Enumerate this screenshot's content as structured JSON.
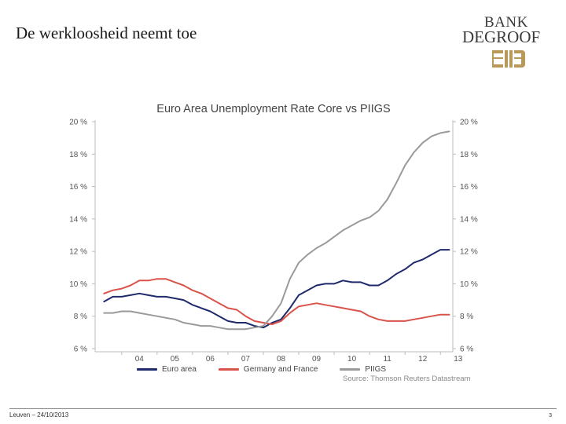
{
  "slide": {
    "title": "De werkloosheid neemt toe",
    "footer_left": "Leuven – 24/10/2013",
    "page_number": "3"
  },
  "logo": {
    "line1": "BANK",
    "line2": "DEGROOF"
  },
  "colors": {
    "euro": "#1f2a6b",
    "gerfra": "#d9534a",
    "piigs": "#9a9a9a",
    "logo_dark": "#3a3a3a",
    "logo_gold": "#b8995a"
  },
  "chart_data": {
    "type": "line",
    "title": "Euro Area Unemployment Rate Core vs PIIGS",
    "source": "Source: Thomson Reuters Datastream",
    "x_ticks": [
      "04",
      "05",
      "06",
      "07",
      "08",
      "09",
      "10",
      "11",
      "12",
      "13"
    ],
    "x_tick_values": [
      2004,
      2005,
      2006,
      2007,
      2008,
      2009,
      2010,
      2011,
      2012,
      2013
    ],
    "xlim": [
      2003.25,
      2013.35
    ],
    "ylim": [
      6,
      20
    ],
    "y_ticks": [
      "6 %",
      "8 %",
      "10 %",
      "12 %",
      "14 %",
      "16 %",
      "18 %",
      "20 %"
    ],
    "y_tick_values": [
      6,
      8,
      10,
      12,
      14,
      16,
      18,
      20
    ],
    "legend_position": "bottom",
    "grid": false,
    "series": [
      {
        "name": "Euro area",
        "color": "#1f2a6b",
        "x": [
          2003.5,
          2003.75,
          2004.0,
          2004.25,
          2004.5,
          2004.75,
          2005.0,
          2005.25,
          2005.5,
          2005.75,
          2006.0,
          2006.25,
          2006.5,
          2006.75,
          2007.0,
          2007.25,
          2007.5,
          2007.75,
          2008.0,
          2008.25,
          2008.5,
          2008.75,
          2009.0,
          2009.25,
          2009.5,
          2009.75,
          2010.0,
          2010.25,
          2010.5,
          2010.75,
          2011.0,
          2011.25,
          2011.5,
          2011.75,
          2012.0,
          2012.25,
          2012.5,
          2012.75,
          2013.0,
          2013.25
        ],
        "y": [
          8.9,
          9.2,
          9.2,
          9.3,
          9.4,
          9.3,
          9.2,
          9.2,
          9.1,
          9.0,
          8.7,
          8.5,
          8.3,
          8.0,
          7.7,
          7.6,
          7.6,
          7.4,
          7.3,
          7.6,
          7.8,
          8.5,
          9.3,
          9.6,
          9.9,
          10.0,
          10.0,
          10.2,
          10.1,
          10.1,
          9.9,
          9.9,
          10.2,
          10.6,
          10.9,
          11.3,
          11.5,
          11.8,
          12.1,
          12.1
        ]
      },
      {
        "name": "Germany and France",
        "color": "#d9534a",
        "x": [
          2003.5,
          2003.75,
          2004.0,
          2004.25,
          2004.5,
          2004.75,
          2005.0,
          2005.25,
          2005.5,
          2005.75,
          2006.0,
          2006.25,
          2006.5,
          2006.75,
          2007.0,
          2007.25,
          2007.5,
          2007.75,
          2008.0,
          2008.25,
          2008.5,
          2008.75,
          2009.0,
          2009.25,
          2009.5,
          2009.75,
          2010.0,
          2010.25,
          2010.5,
          2010.75,
          2011.0,
          2011.25,
          2011.5,
          2011.75,
          2012.0,
          2012.25,
          2012.5,
          2012.75,
          2013.0,
          2013.25
        ],
        "y": [
          9.4,
          9.6,
          9.7,
          9.9,
          10.2,
          10.2,
          10.3,
          10.3,
          10.1,
          9.9,
          9.6,
          9.4,
          9.1,
          8.8,
          8.5,
          8.4,
          8.0,
          7.7,
          7.6,
          7.5,
          7.7,
          8.2,
          8.6,
          8.7,
          8.8,
          8.7,
          8.6,
          8.5,
          8.4,
          8.3,
          8.0,
          7.8,
          7.7,
          7.7,
          7.7,
          7.8,
          7.9,
          8.0,
          8.1,
          8.1
        ]
      },
      {
        "name": "PIIGS",
        "color": "#9a9a9a",
        "x": [
          2003.5,
          2003.75,
          2004.0,
          2004.25,
          2004.5,
          2004.75,
          2005.0,
          2005.25,
          2005.5,
          2005.75,
          2006.0,
          2006.25,
          2006.5,
          2006.75,
          2007.0,
          2007.25,
          2007.5,
          2007.75,
          2008.0,
          2008.25,
          2008.5,
          2008.75,
          2009.0,
          2009.25,
          2009.5,
          2009.75,
          2010.0,
          2010.25,
          2010.5,
          2010.75,
          2011.0,
          2011.25,
          2011.5,
          2011.75,
          2012.0,
          2012.25,
          2012.5,
          2012.75,
          2013.0,
          2013.25
        ],
        "y": [
          8.2,
          8.2,
          8.3,
          8.3,
          8.2,
          8.1,
          8.0,
          7.9,
          7.8,
          7.6,
          7.5,
          7.4,
          7.4,
          7.3,
          7.2,
          7.2,
          7.2,
          7.3,
          7.4,
          8.0,
          8.8,
          10.3,
          11.3,
          11.8,
          12.2,
          12.5,
          12.9,
          13.3,
          13.6,
          13.9,
          14.1,
          14.5,
          15.2,
          16.2,
          17.3,
          18.1,
          18.7,
          19.1,
          19.3,
          19.4
        ]
      }
    ]
  }
}
